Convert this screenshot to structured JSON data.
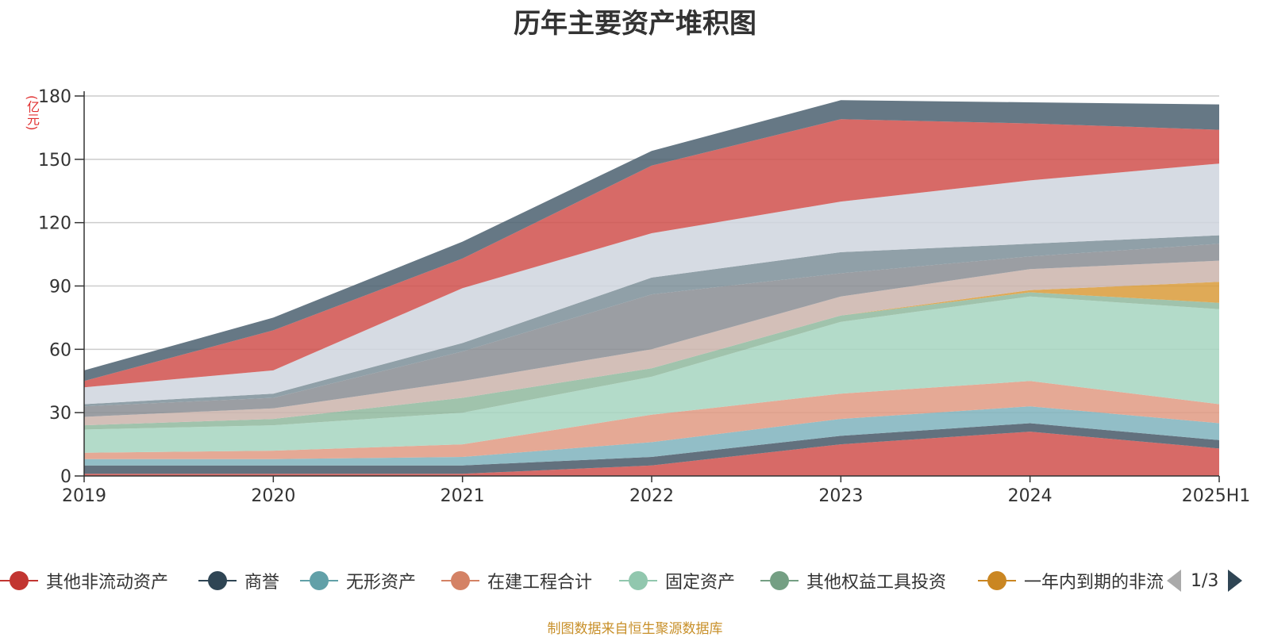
{
  "chart_data": {
    "type": "area",
    "stacked": true,
    "title": "历年主要资产堆积图",
    "unit": "(亿元)",
    "categories": [
      "2019",
      "2020",
      "2021",
      "2022",
      "2023",
      "2024",
      "2025H1"
    ],
    "ylim": [
      0,
      180
    ],
    "yticks": [
      "0",
      "30",
      "60",
      "90",
      "120",
      "150",
      "180"
    ],
    "grid": true,
    "legend_position": "bottom",
    "series": [
      {
        "name": "其他非流动资产",
        "color": "#d0504c",
        "values": [
          1,
          1,
          1,
          5,
          15,
          21,
          13
        ]
      },
      {
        "name": "商誉",
        "color": "#465867",
        "values": [
          4,
          4,
          4,
          4,
          4,
          4,
          4
        ]
      },
      {
        "name": "无形资产",
        "color": "#7fb3bd",
        "values": [
          3,
          3,
          4,
          7,
          8,
          8,
          8
        ]
      },
      {
        "name": "在建工程合计",
        "color": "#e09a82",
        "values": [
          3,
          4,
          6,
          13,
          12,
          12,
          9
        ]
      },
      {
        "name": "固定资产",
        "color": "#a6d5bf",
        "values": [
          11,
          12,
          15,
          18,
          34,
          40,
          45
        ]
      },
      {
        "name": "其他权益工具投资",
        "color": "#8fb99e",
        "values": [
          2,
          3,
          7,
          4,
          3,
          2,
          3
        ]
      },
      {
        "name": "一年内到期的非流动资产",
        "color": "#d99b3a",
        "values": [
          0,
          0,
          0,
          0,
          0,
          1,
          10
        ]
      },
      {
        "name": "",
        "color": "#cbb4ab",
        "values": [
          4,
          5,
          8,
          9,
          9,
          10,
          10
        ]
      },
      {
        "name": "",
        "color": "#8a8d93",
        "values": [
          5,
          5,
          14,
          26,
          11,
          6,
          8
        ]
      },
      {
        "name": "",
        "color": "#7c8f99",
        "values": [
          1,
          2,
          4,
          8,
          10,
          6,
          4
        ]
      },
      {
        "name": "",
        "color": "#cfd5de",
        "values": [
          8,
          11,
          26,
          21,
          24,
          30,
          34
        ]
      },
      {
        "name": "",
        "color": "#d0504c",
        "values": [
          3,
          19,
          14,
          32,
          39,
          27,
          16
        ]
      },
      {
        "name": "",
        "color": "#4b6070",
        "values": [
          5,
          6,
          8,
          7,
          9,
          10,
          12
        ]
      }
    ]
  },
  "legend": {
    "items": [
      {
        "label": "其他非流动资产",
        "color": "#c23531"
      },
      {
        "label": "商誉",
        "color": "#2f4554"
      },
      {
        "label": "无形资产",
        "color": "#61a0a8"
      },
      {
        "label": "在建工程合计",
        "color": "#d48265"
      },
      {
        "label": "固定资产",
        "color": "#91c7ae"
      },
      {
        "label": "其他权益工具投资",
        "color": "#749f83"
      },
      {
        "label": "一年内到期的非流",
        "color": "#ca8622"
      }
    ],
    "page": "1/3"
  },
  "source": "制图数据来自恒生聚源数据库"
}
